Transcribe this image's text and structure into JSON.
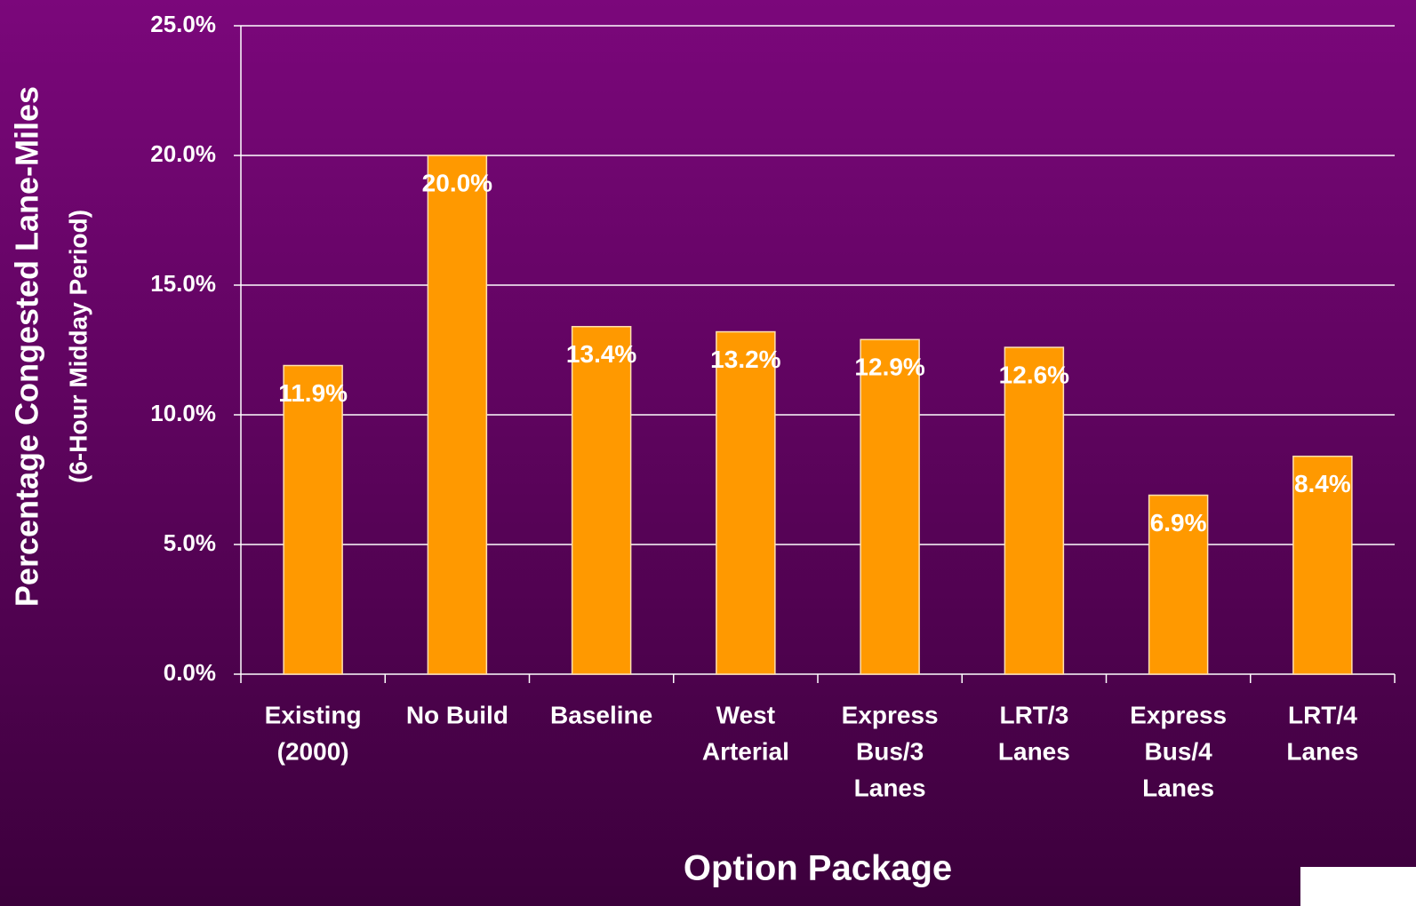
{
  "chart_data": {
    "type": "bar",
    "y_axis_label": "Percentage Congested Lane-Miles",
    "y_axis_sublabel": "(6-Hour Midday Period)",
    "x_axis_label": "Option Package",
    "categories": [
      [
        "Existing",
        "(2000)"
      ],
      [
        "No Build"
      ],
      [
        "Baseline"
      ],
      [
        "West",
        "Arterial"
      ],
      [
        "Express",
        "Bus/3",
        "Lanes"
      ],
      [
        "LRT/3",
        "Lanes"
      ],
      [
        "Express",
        "Bus/4",
        "Lanes"
      ],
      [
        "LRT/4",
        "Lanes"
      ]
    ],
    "values": [
      11.9,
      20.0,
      13.4,
      13.2,
      12.9,
      12.6,
      6.9,
      8.4
    ],
    "value_labels": [
      "11.9%",
      "20.0%",
      "13.4%",
      "13.2%",
      "12.9%",
      "12.6%",
      "6.9%",
      "8.4%"
    ],
    "color": "#ff9900",
    "ylim": [
      0,
      25
    ],
    "yticks": [
      {
        "value": 0,
        "label": "0.0%"
      },
      {
        "value": 5,
        "label": "5.0%"
      },
      {
        "value": 10,
        "label": "10.0%"
      },
      {
        "value": 15,
        "label": "15.0%"
      },
      {
        "value": 20,
        "label": "20.0%"
      },
      {
        "value": 25,
        "label": "25.0%"
      }
    ],
    "grid": true
  }
}
